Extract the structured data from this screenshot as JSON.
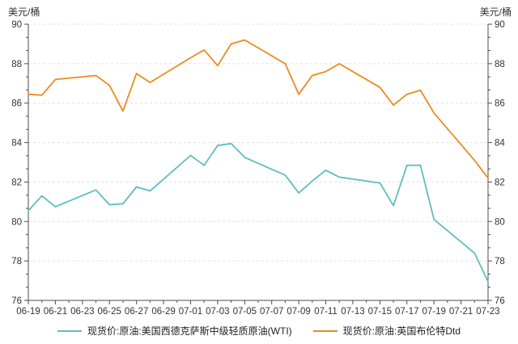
{
  "page": {
    "background": "#ffffff",
    "text_color": "#333333",
    "axis_color": "#4d4d4d",
    "grid_color": "#e0e0e0"
  },
  "chart_data": {
    "type": "line",
    "title": "",
    "y_unit_left": "美元/桶",
    "y_unit_right": "美元/桶",
    "ylim": [
      76,
      90
    ],
    "y_major_step": 2,
    "y_minor_divisions": 3,
    "grid": "horizontal-dashed",
    "legend_position": "bottom-center",
    "x_days_total": 35,
    "x_tick_labels": [
      "06-19",
      "06-21",
      "06-23",
      "06-25",
      "06-27",
      "06-29",
      "07-01",
      "07-03",
      "07-05",
      "07-07",
      "07-09",
      "07-11",
      "07-13",
      "07-15",
      "07-17",
      "07-19",
      "07-21",
      "07-23"
    ],
    "series": [
      {
        "name": "现货价:原油:美国西德克萨斯中级轻质原油(WTI)",
        "color": "#5fbdbf",
        "points_day_value": [
          [
            0,
            80.55
          ],
          [
            1,
            81.3
          ],
          [
            2,
            80.75
          ],
          [
            5,
            81.6
          ],
          [
            6,
            80.85
          ],
          [
            7,
            80.9
          ],
          [
            8,
            81.75
          ],
          [
            9,
            81.55
          ],
          [
            12,
            83.35
          ],
          [
            13,
            82.85
          ],
          [
            14,
            83.85
          ],
          [
            15,
            83.95
          ],
          [
            16,
            83.25
          ],
          [
            19,
            82.35
          ],
          [
            20,
            81.45
          ],
          [
            21,
            82.05
          ],
          [
            22,
            82.6
          ],
          [
            23,
            82.25
          ],
          [
            26,
            81.95
          ],
          [
            27,
            80.8
          ],
          [
            28,
            82.85
          ],
          [
            29,
            82.85
          ],
          [
            30,
            80.1
          ],
          [
            33,
            78.4
          ],
          [
            34,
            76.95
          ]
        ]
      },
      {
        "name": "现货价:原油:英国布伦特Dtd",
        "color": "#ed8a1f",
        "points_day_value": [
          [
            0,
            86.45
          ],
          [
            1,
            86.4
          ],
          [
            2,
            87.2
          ],
          [
            5,
            87.4
          ],
          [
            6,
            86.9
          ],
          [
            7,
            85.6
          ],
          [
            8,
            87.5
          ],
          [
            9,
            87.05
          ],
          [
            12,
            88.3
          ],
          [
            13,
            88.7
          ],
          [
            14,
            87.9
          ],
          [
            15,
            89.0
          ],
          [
            16,
            89.2
          ],
          [
            19,
            88.0
          ],
          [
            20,
            86.45
          ],
          [
            21,
            87.4
          ],
          [
            22,
            87.6
          ],
          [
            23,
            88.0
          ],
          [
            26,
            86.8
          ],
          [
            27,
            85.9
          ],
          [
            28,
            86.45
          ],
          [
            29,
            86.65
          ],
          [
            30,
            85.5
          ],
          [
            33,
            83.1
          ],
          [
            34,
            82.2
          ]
        ]
      }
    ]
  }
}
